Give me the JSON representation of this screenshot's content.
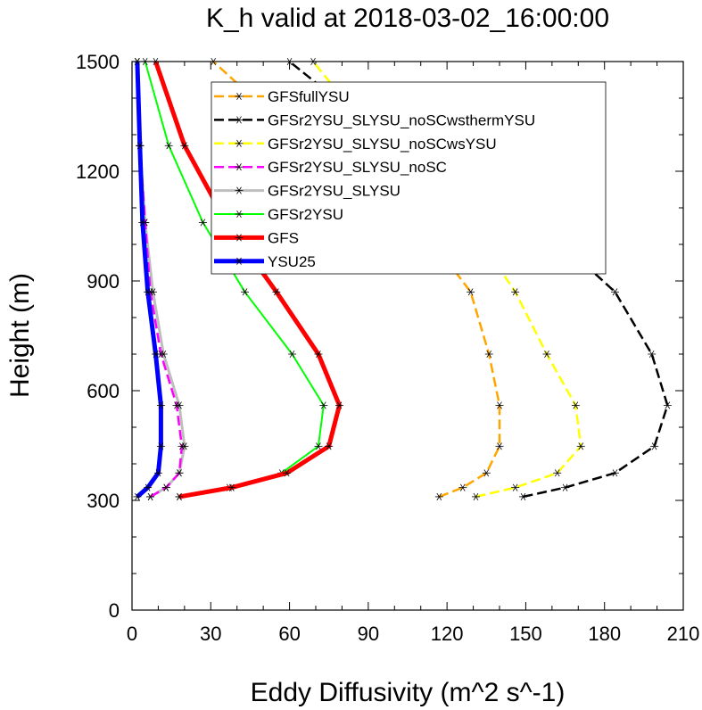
{
  "chart_data": {
    "type": "line",
    "title": "K_h valid at 2018-03-02_16:00:00",
    "xlabel": "Eddy Diffusivity (m^2 s^-1)",
    "ylabel": "Height (m)",
    "xlim": [
      0,
      210
    ],
    "ylim": [
      0,
      1500
    ],
    "xticks": [
      "0",
      "30",
      "60",
      "90",
      "120",
      "150",
      "180",
      "210"
    ],
    "yticks": [
      "0",
      "300",
      "600",
      "900",
      "1200",
      "1500"
    ],
    "grid": false,
    "legend_position": "top-center",
    "series": [
      {
        "name": "GFSfullYSU",
        "color": "#ffa500",
        "dash": "dashed",
        "width": 2.5,
        "points": [
          [
            117,
            310
          ],
          [
            126,
            335
          ],
          [
            135,
            375
          ],
          [
            140,
            448
          ],
          [
            140,
            560
          ],
          [
            136,
            700
          ],
          [
            129,
            870
          ],
          [
            109,
            1060
          ],
          [
            66,
            1270
          ],
          [
            31,
            1500
          ]
        ]
      },
      {
        "name": "GFSr2YSU_SLYSU_noSCwsthermYSU",
        "color": "#000000",
        "dash": "dashed",
        "width": 2.5,
        "points": [
          [
            149,
            310
          ],
          [
            165,
            335
          ],
          [
            184,
            375
          ],
          [
            199,
            448
          ],
          [
            204,
            560
          ],
          [
            198,
            700
          ],
          [
            184,
            870
          ],
          [
            155,
            1060
          ],
          [
            100,
            1270
          ],
          [
            60,
            1500
          ]
        ]
      },
      {
        "name": "GFSr2YSU_SLYSU_noSCwsYSU",
        "color": "#ffff00",
        "dash": "dashed",
        "width": 2.5,
        "points": [
          [
            131,
            310
          ],
          [
            146,
            335
          ],
          [
            162,
            375
          ],
          [
            171,
            448
          ],
          [
            169,
            560
          ],
          [
            158,
            700
          ],
          [
            146,
            870
          ],
          [
            128,
            1060
          ],
          [
            95,
            1270
          ],
          [
            69,
            1500
          ]
        ]
      },
      {
        "name": "GFSr2YSU_SLYSU_noSC",
        "color": "#ff00ff",
        "dash": "dashed",
        "width": 2.5,
        "points": [
          [
            7,
            310
          ],
          [
            13,
            335
          ],
          [
            18,
            375
          ],
          [
            19,
            448
          ],
          [
            17,
            560
          ],
          [
            11,
            700
          ],
          [
            7,
            870
          ],
          [
            5,
            1060
          ],
          [
            3,
            1270
          ],
          [
            2,
            1500
          ]
        ]
      },
      {
        "name": "GFSr2YSU_SLYSU",
        "color": "#bebebe",
        "dash": "solid",
        "width": 3,
        "points": [
          [
            7,
            310
          ],
          [
            13,
            335
          ],
          [
            18,
            375
          ],
          [
            20,
            448
          ],
          [
            18,
            560
          ],
          [
            12,
            700
          ],
          [
            8,
            870
          ],
          [
            5,
            1060
          ],
          [
            3,
            1270
          ],
          [
            2,
            1500
          ]
        ]
      },
      {
        "name": "GFSr2YSU",
        "color": "#00ff00",
        "dash": "solid",
        "width": 2,
        "points": [
          [
            18,
            310
          ],
          [
            37,
            335
          ],
          [
            57,
            375
          ],
          [
            71,
            448
          ],
          [
            73,
            560
          ],
          [
            61,
            700
          ],
          [
            43,
            870
          ],
          [
            27,
            1060
          ],
          [
            14,
            1270
          ],
          [
            5,
            1500
          ]
        ]
      },
      {
        "name": "GFS",
        "color": "#ff0000",
        "dash": "solid",
        "width": 5,
        "points": [
          [
            18,
            310
          ],
          [
            38,
            335
          ],
          [
            59,
            375
          ],
          [
            75,
            448
          ],
          [
            79,
            560
          ],
          [
            71,
            700
          ],
          [
            55,
            870
          ],
          [
            36,
            1060
          ],
          [
            20,
            1270
          ],
          [
            9,
            1500
          ]
        ]
      },
      {
        "name": "YSU25",
        "color": "#0000ff",
        "dash": "solid",
        "width": 5,
        "points": [
          [
            2,
            310
          ],
          [
            6,
            335
          ],
          [
            10,
            375
          ],
          [
            11,
            448
          ],
          [
            11,
            560
          ],
          [
            9,
            700
          ],
          [
            6,
            870
          ],
          [
            4,
            1060
          ],
          [
            3,
            1270
          ],
          [
            2,
            1500
          ]
        ]
      }
    ]
  }
}
